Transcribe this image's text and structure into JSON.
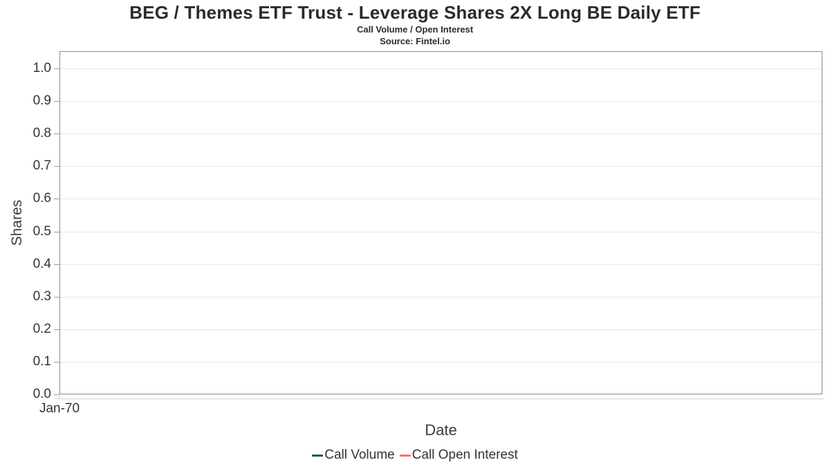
{
  "chart_data": {
    "type": "line",
    "title": "BEG / Themes ETF Trust - Leverage Shares 2X Long BE Daily ETF",
    "subtitle": "Call Volume / Open Interest",
    "source": "Source: Fintel.io",
    "xlabel": "Date",
    "ylabel": "Shares",
    "xticks": [
      "Jan-70"
    ],
    "yticks": [
      1.0,
      0.9,
      0.8,
      0.7,
      0.6,
      0.5,
      0.4,
      0.3,
      0.2,
      0.1,
      0.0
    ],
    "ytick_labels": [
      "1.0",
      "0.9",
      "0.8",
      "0.7",
      "0.6",
      "0.5",
      "0.4",
      "0.3",
      "0.2",
      "0.1",
      "0.0"
    ],
    "ylim": [
      0.0,
      1.05
    ],
    "grid": "horizontal-only",
    "legend_position": "bottom-center",
    "series": [
      {
        "name": "Call Volume",
        "color": "#275b3e",
        "x": [],
        "values": []
      },
      {
        "name": "Call Open Interest",
        "color": "#fb6f6f",
        "x": [],
        "values": []
      }
    ],
    "colors": {
      "background": "#ffffff",
      "plot_border": "#888888",
      "gridline": "#e7e7e7",
      "axis_line": "#d2d2d2",
      "tick_label": "#333333",
      "title_text": "#2b2b2b"
    }
  }
}
